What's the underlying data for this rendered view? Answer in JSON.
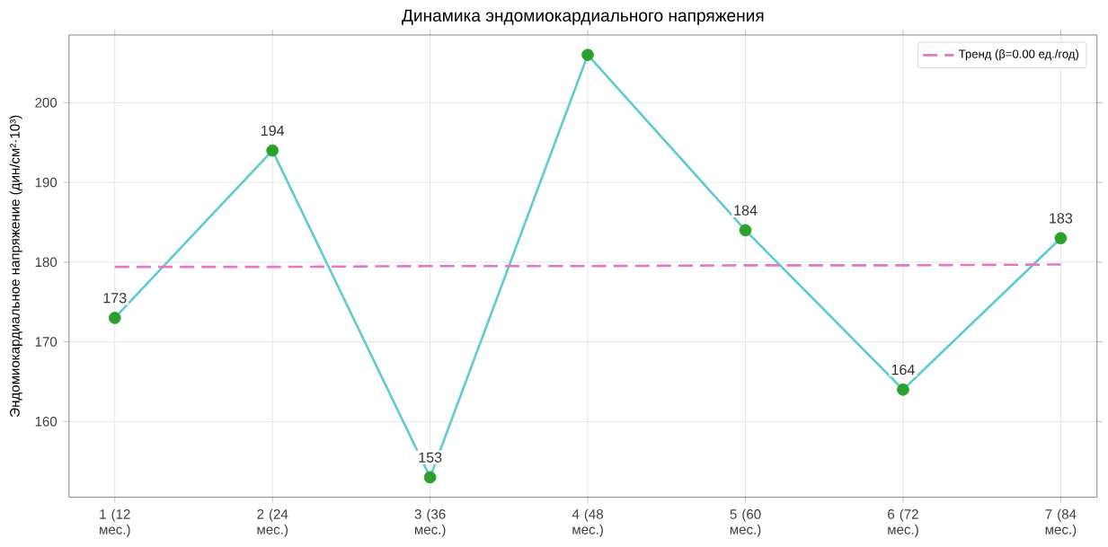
{
  "chart_data": {
    "type": "line",
    "title": "Динамика эндомиокардиального напряжения",
    "ylabel": "Эндомиокардиальное напряжение (дин/см²·10³)",
    "categories": [
      "1 (12 мес.)",
      "2 (24 мес.)",
      "3 (36 мес.)",
      "4 (48 мес.)",
      "5 (60 мес.)",
      "6 (72 мес.)",
      "7 (84 мес.)"
    ],
    "ylim": [
      150.5,
      208.5
    ],
    "yticks": [
      160,
      170,
      180,
      190,
      200
    ],
    "grid": true,
    "legend": "top right",
    "series": [
      {
        "color": "#5ecbd2",
        "colors": [
          "#2ca02c",
          "#2ca02c",
          "#2ca02c",
          "#2ca02c",
          "#2ca02c",
          "#2ca02c",
          "#2ca02c"
        ],
        "marker": "circle",
        "line_style": "solid",
        "values": [
          173,
          194,
          153,
          206,
          184,
          164,
          183
        ],
        "value_labels": [
          "173",
          "194",
          "153",
          null,
          "184",
          "164",
          "183"
        ]
      },
      {
        "name": "Тренд (β=0.00 ед./год)",
        "type": "line",
        "color": "#e377c2",
        "marker": "none",
        "line_style": "dashed",
        "values": [
          179.4,
          179.4,
          179.5,
          179.5,
          179.6,
          179.6,
          179.7
        ]
      }
    ]
  }
}
